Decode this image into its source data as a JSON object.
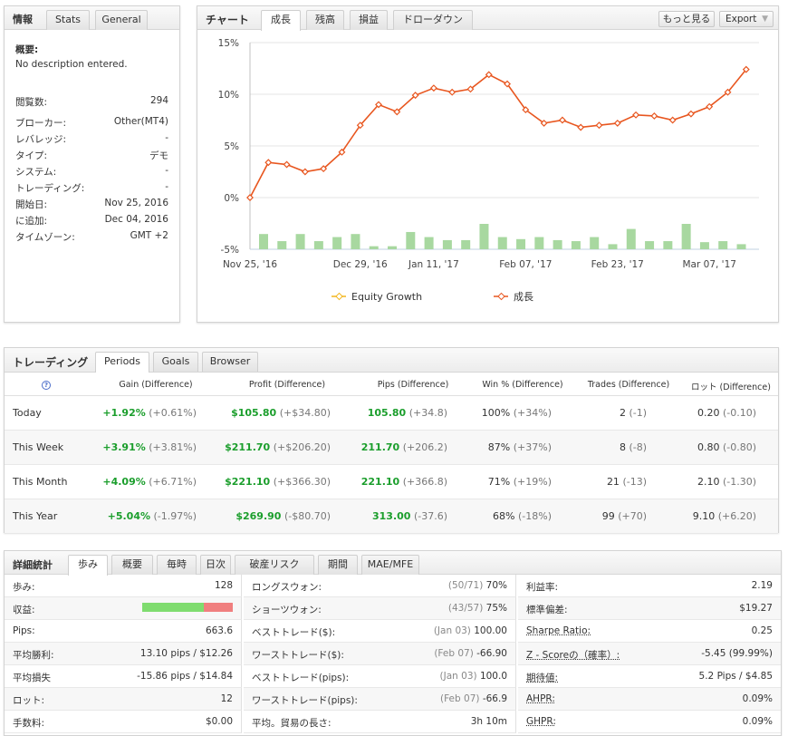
{
  "info": {
    "tabs": [
      "情報",
      "Stats",
      "General"
    ],
    "summary_label": "概要:",
    "summary_text": "No description entered.",
    "rows": [
      {
        "k": "閲覧数:",
        "v": "294"
      },
      {
        "k": "ブローカー:",
        "v": "Other(MT4)"
      },
      {
        "k": "レバレッジ:",
        "v": "-"
      },
      {
        "k": "タイプ:",
        "v": "デモ"
      },
      {
        "k": "システム:",
        "v": "-"
      },
      {
        "k": "トレーディング:",
        "v": "-"
      },
      {
        "k": "開始日:",
        "v": "Nov 25, 2016"
      },
      {
        "k": "に追加:",
        "v": "Dec 04, 2016"
      },
      {
        "k": "タイムゾーン:",
        "v": "GMT +2"
      }
    ]
  },
  "chart_panel": {
    "title": "チャート",
    "tabs": [
      "成長",
      "残高",
      "損益",
      "ドローダウン"
    ],
    "more_button": "もっと見る",
    "export_button": "Export"
  },
  "chart_data": {
    "type": "line",
    "y_ticks": [
      "15%",
      "10%",
      "5%",
      "0%",
      "-5%"
    ],
    "ylim": [
      -5,
      15
    ],
    "x_ticks": [
      "Nov 25, '16",
      "Dec 29, '16",
      "Jan 11, '17",
      "Feb 07, '17",
      "Feb 23, '17",
      "Mar 07, '17"
    ],
    "legend": [
      "Equity Growth",
      "成長"
    ],
    "series": [
      {
        "name": "成長",
        "color": "#e8561f",
        "values": [
          0.0,
          3.4,
          3.2,
          2.5,
          2.8,
          4.4,
          7.0,
          9.0,
          8.3,
          9.9,
          10.6,
          10.2,
          10.5,
          11.9,
          11.0,
          8.5,
          7.2,
          7.5,
          6.8,
          7.0,
          7.2,
          8.0,
          7.9,
          7.5,
          8.1,
          8.8,
          10.2,
          12.4
        ]
      },
      {
        "name": "Equity Growth",
        "color": "#f2b51c",
        "values": []
      }
    ],
    "bars": {
      "color": "#a8d8a0",
      "values": [
        1.5,
        0.8,
        1.5,
        0.8,
        1.2,
        1.5,
        0.3,
        0.3,
        1.7,
        1.2,
        0.9,
        0.9,
        2.5,
        1.2,
        1.0,
        1.2,
        0.9,
        0.8,
        1.2,
        0.5,
        2.0,
        0.8,
        0.8,
        2.5,
        0.7,
        0.8,
        0.5
      ]
    }
  },
  "trading": {
    "title": "トレーディング",
    "tabs": [
      "Periods",
      "Goals",
      "Browser"
    ],
    "help_icon": "?",
    "headers": [
      "Gain (Difference)",
      "Profit (Difference)",
      "Pips (Difference)",
      "Win % (Difference)",
      "Trades (Difference)",
      "ロット (Difference)"
    ],
    "rows": [
      {
        "period": "Today",
        "gain": "+1.92%",
        "gain_diff": "(+0.61%)",
        "profit": "$105.80",
        "profit_diff": "(+$34.80)",
        "pips": "105.80",
        "pips_diff": "(+34.8)",
        "win": "100%",
        "win_diff": "(+34%)",
        "trades": "2",
        "trades_diff": "(-1)",
        "lots": "0.20",
        "lots_diff": "(-0.10)"
      },
      {
        "period": "This Week",
        "gain": "+3.91%",
        "gain_diff": "(+3.81%)",
        "profit": "$211.70",
        "profit_diff": "(+$206.20)",
        "pips": "211.70",
        "pips_diff": "(+206.2)",
        "win": "87%",
        "win_diff": "(+37%)",
        "trades": "8",
        "trades_diff": "(-8)",
        "lots": "0.80",
        "lots_diff": "(-0.80)"
      },
      {
        "period": "This Month",
        "gain": "+4.09%",
        "gain_diff": "(+6.71%)",
        "profit": "$221.10",
        "profit_diff": "(+$366.30)",
        "pips": "221.10",
        "pips_diff": "(+366.8)",
        "win": "71%",
        "win_diff": "(+19%)",
        "trades": "21",
        "trades_diff": "(-13)",
        "lots": "2.10",
        "lots_diff": "(-1.30)"
      },
      {
        "period": "This Year",
        "gain": "+5.04%",
        "gain_diff": "(-1.97%)",
        "profit": "$269.90",
        "profit_diff": "(-$80.70)",
        "pips": "313.00",
        "pips_diff": "(-37.6)",
        "win": "68%",
        "win_diff": "(-18%)",
        "trades": "99",
        "trades_diff": "(+70)",
        "lots": "9.10",
        "lots_diff": "(+6.20)"
      }
    ]
  },
  "stats": {
    "title": "詳細統計",
    "tabs": [
      "歩み",
      "概要",
      "毎時",
      "日次",
      "破産リスク",
      "期間",
      "MAE/MFE"
    ],
    "col1": [
      {
        "k": "歩み:",
        "v": "128"
      },
      {
        "k": "収益:",
        "v": "",
        "bar": {
          "green": 0.68,
          "red": 0.32
        }
      },
      {
        "k": "Pips:",
        "v": "663.6"
      },
      {
        "k": "平均勝利:",
        "v": "13.10 pips / $12.26"
      },
      {
        "k": "平均損失",
        "v": "-15.86 pips / $14.84"
      },
      {
        "k": "ロット:",
        "v": "12"
      },
      {
        "k": "手数料:",
        "v": "$0.00"
      }
    ],
    "col2": [
      {
        "k": "ロングスウォン:",
        "g": "(50/71)",
        "v": "70%"
      },
      {
        "k": "ショーツウォン:",
        "g": "(43/57)",
        "v": "75%"
      },
      {
        "k": "ベストトレード($):",
        "g": "(Jan 03)",
        "v": "100.00"
      },
      {
        "k": "ワーストトレード($):",
        "g": "(Feb 07)",
        "v": "-66.90"
      },
      {
        "k": "ベストトレード(pips):",
        "g": "(Jan 03)",
        "v": "100.0"
      },
      {
        "k": "ワーストトレード(pips):",
        "g": "(Feb 07)",
        "v": "-66.9"
      },
      {
        "k": "平均。貿易の長さ:",
        "g": "",
        "v": "3h 10m"
      }
    ],
    "col3": [
      {
        "k": "利益率:",
        "v": "2.19"
      },
      {
        "k": "標準偏差:",
        "v": "$19.27"
      },
      {
        "k": "Sharpe Ratio:",
        "v": "0.25"
      },
      {
        "k": "Z - Scoreの（確率）:",
        "v": "-5.45 (99.99%)"
      },
      {
        "k": "期待値:",
        "v": "5.2 Pips / $4.85"
      },
      {
        "k": "AHPR:",
        "v": "0.09%"
      },
      {
        "k": "GHPR:",
        "v": "0.09%"
      }
    ]
  }
}
